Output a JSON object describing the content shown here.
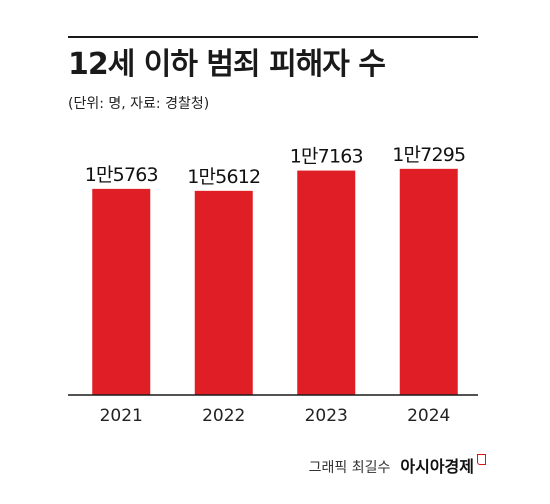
{
  "chart_data": {
    "type": "bar",
    "title": "12세 이하 범죄 피해자 수",
    "subtitle": "(단위: 명, 자료: 경찰청)",
    "categories": [
      "2021",
      "2022",
      "2023",
      "2024"
    ],
    "values": [
      15763,
      15612,
      17163,
      17295
    ],
    "value_labels": [
      "1만5763",
      "1만5612",
      "1만7163",
      "1만7295"
    ],
    "ylim": [
      0,
      19500
    ],
    "grid": false,
    "bar_color": "#e01e26",
    "axis_color": "#1a1a1a"
  },
  "footer": {
    "credit": "그래픽 최길수",
    "brand": "아시아경제"
  }
}
